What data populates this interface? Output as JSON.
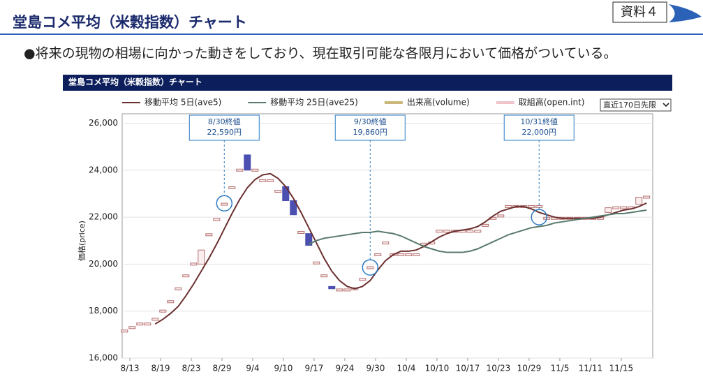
{
  "header": {
    "title": "堂島コメ平均（米穀指数）チャート",
    "badge": "資料４"
  },
  "bullet": "●将来の現物の相場に向かった動きをしており、現在取引可能な各限月において価格がついている。",
  "chart_data": {
    "type": "candlestick",
    "title": "堂島コメ平均（米穀指数）チャート",
    "selector": "直近170日先限",
    "ylabel": "価格(price)",
    "x": [
      0,
      1,
      2,
      3,
      4,
      5,
      6,
      7,
      8,
      9,
      10,
      11,
      12,
      13,
      14,
      15,
      16,
      17,
      18,
      19,
      20,
      21,
      22,
      23,
      24,
      25,
      26,
      27,
      28,
      29,
      30,
      31,
      32,
      33,
      34,
      35,
      36,
      37,
      38,
      39,
      40,
      41,
      42,
      43,
      44,
      45,
      46,
      47,
      48,
      49,
      50,
      51,
      52,
      53,
      54,
      55,
      56,
      57,
      58,
      59,
      60,
      61,
      62,
      63,
      64,
      65,
      66,
      67,
      68
    ],
    "open": [
      17150,
      17300,
      17450,
      17450,
      17650,
      18000,
      18400,
      18950,
      19500,
      20000,
      20000,
      21250,
      21900,
      22550,
      23250,
      24000,
      24650,
      24000,
      23550,
      23550,
      23100,
      23300,
      22700,
      21350,
      21300,
      20050,
      19500,
      19050,
      18900,
      18900,
      18950,
      19350,
      19850,
      20400,
      20900,
      20400,
      20400,
      20400,
      20400,
      20850,
      20900,
      21400,
      21400,
      21400,
      21400,
      21400,
      21400,
      21650,
      21950,
      22050,
      22450,
      22450,
      22450,
      22450,
      22450,
      21950,
      21950,
      21950,
      21950,
      21950,
      21950,
      21950,
      21950,
      22200,
      22400,
      22400,
      22400,
      22550,
      22850
    ],
    "close": [
      17150,
      17300,
      17450,
      17450,
      17650,
      18000,
      18400,
      18950,
      19500,
      20000,
      20600,
      21250,
      21900,
      22550,
      23250,
      24000,
      24000,
      24000,
      23550,
      23550,
      23100,
      22700,
      22100,
      21350,
      20800,
      20050,
      19500,
      18950,
      18900,
      18900,
      18950,
      19350,
      19850,
      20400,
      20900,
      20400,
      20400,
      20400,
      20400,
      20850,
      20900,
      21400,
      21400,
      21400,
      21400,
      21400,
      21400,
      21650,
      21950,
      22050,
      22450,
      22450,
      22450,
      22450,
      22450,
      21950,
      21950,
      21950,
      21950,
      21950,
      21950,
      21950,
      21950,
      22400,
      22400,
      22400,
      22400,
      22850,
      22850
    ],
    "candle_color": "#b57070",
    "down_color": "#4a4fb0",
    "series": [
      {
        "name": "移動平均 5日(ave5)",
        "color": "#6b2f2f",
        "values": [
          null,
          null,
          null,
          null,
          17450,
          17650,
          17900,
          18200,
          18650,
          19150,
          19700,
          20250,
          20850,
          21500,
          22150,
          22750,
          23250,
          23600,
          23800,
          23850,
          23650,
          23300,
          22800,
          22200,
          21550,
          20900,
          20250,
          19700,
          19300,
          19050,
          18950,
          19050,
          19300,
          19750,
          20150,
          20400,
          20550,
          20550,
          20600,
          20750,
          20950,
          21150,
          21300,
          21400,
          21450,
          21500,
          21600,
          21800,
          22050,
          22250,
          22350,
          22450,
          22450,
          22350,
          22200,
          22100,
          22000,
          21950,
          21950,
          21950,
          21950,
          21950,
          22000,
          22100,
          22200,
          22300,
          22350,
          22450,
          22600
        ]
      },
      {
        "name": "移動平均 25日(ave25)",
        "color": "#5a7a6e",
        "values": [
          null,
          null,
          null,
          null,
          null,
          null,
          null,
          null,
          null,
          null,
          null,
          null,
          null,
          null,
          null,
          null,
          null,
          null,
          null,
          null,
          null,
          null,
          null,
          null,
          20850,
          21000,
          21100,
          21150,
          21200,
          21250,
          21300,
          21350,
          21350,
          21400,
          21350,
          21300,
          21200,
          21050,
          20900,
          20750,
          20650,
          20550,
          20500,
          20500,
          20500,
          20550,
          20650,
          20800,
          20950,
          21100,
          21250,
          21350,
          21450,
          21550,
          21600,
          21650,
          21750,
          21800,
          21850,
          21900,
          21950,
          22000,
          22050,
          22100,
          22150,
          22150,
          22200,
          22250,
          22300
        ]
      },
      {
        "name": "出来高(volume)",
        "color": "#c9b87a"
      },
      {
        "name": "取組高(open.int)",
        "color": "#efc4cb"
      }
    ],
    "annotations": [
      {
        "lines": [
          "8/30終値",
          "22,590円"
        ],
        "x": 13,
        "value": 22590
      },
      {
        "lines": [
          "9/30終値",
          "19,860円"
        ],
        "x": 32,
        "value": 19860
      },
      {
        "lines": [
          "10/31終値",
          "22,000円"
        ],
        "x": 54,
        "value": 22000
      }
    ],
    "xlim": [
      -0.3,
      68.8
    ],
    "xticks": [
      {
        "value": 0.7,
        "label": "8/13"
      },
      {
        "value": 4.7,
        "label": "8/19"
      },
      {
        "value": 8.7,
        "label": "8/23"
      },
      {
        "value": 12.7,
        "label": "8/29"
      },
      {
        "value": 16.7,
        "label": "9/4"
      },
      {
        "value": 20.7,
        "label": "9/10"
      },
      {
        "value": 24.7,
        "label": "9/17"
      },
      {
        "value": 28.7,
        "label": "9/24"
      },
      {
        "value": 32.7,
        "label": "9/30"
      },
      {
        "value": 36.7,
        "label": "10/4"
      },
      {
        "value": 40.7,
        "label": "10/10"
      },
      {
        "value": 44.7,
        "label": "10/17"
      },
      {
        "value": 48.7,
        "label": "10/23"
      },
      {
        "value": 52.7,
        "label": "10/29"
      },
      {
        "value": 56.7,
        "label": "11/5"
      },
      {
        "value": 60.7,
        "label": "11/11"
      },
      {
        "value": 64.7,
        "label": "11/15"
      }
    ],
    "ylim": [
      16000,
      26400
    ],
    "yticks": [
      {
        "value": 16000,
        "label": "16,000"
      },
      {
        "value": 18000,
        "label": "18,000"
      },
      {
        "value": 20000,
        "label": "20,000"
      },
      {
        "value": 22000,
        "label": "22,000"
      },
      {
        "value": 24000,
        "label": "24,000"
      },
      {
        "value": 26000,
        "label": "26,000"
      }
    ],
    "grid": true
  }
}
